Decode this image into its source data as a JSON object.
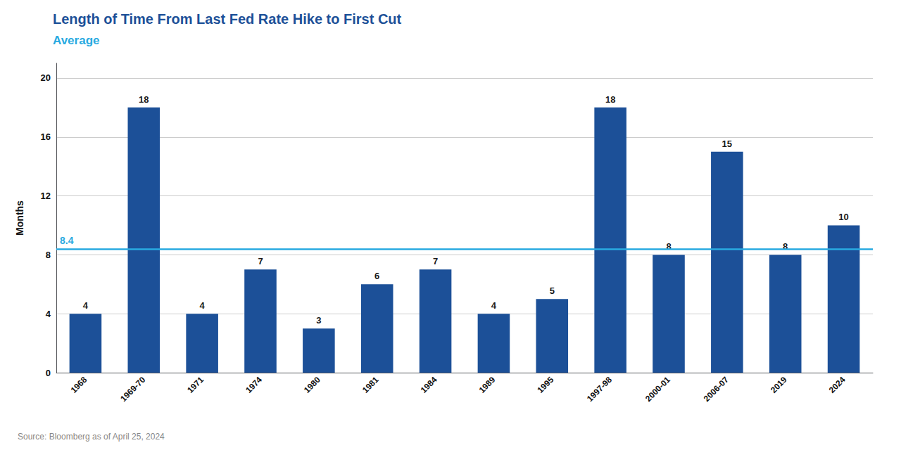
{
  "chart_data": {
    "type": "bar",
    "title": "Length of Time From Last Fed Rate Hike to First Cut",
    "title_color": "#1c5098",
    "subtitle": "Average",
    "subtitle_color": "#29aae1",
    "source": "Source: Bloomberg as of April 25, 2024",
    "categories": [
      "1968",
      "1969-70",
      "1971",
      "1974",
      "1980",
      "1981",
      "1984",
      "1989",
      "1995",
      "1997-98",
      "2000-01",
      "2006-07",
      "2019",
      "2024"
    ],
    "values": [
      4,
      18,
      4,
      7,
      3,
      6,
      7,
      4,
      5,
      18,
      8,
      15,
      8,
      10
    ],
    "color": "#1c5098",
    "average": 8.4,
    "average_color": "#29aae1",
    "ylabel": "Months",
    "ylim": [
      0,
      21
    ],
    "yticks": [
      0,
      4,
      8,
      12,
      16,
      20
    ],
    "grid": true,
    "data_labels": true
  }
}
